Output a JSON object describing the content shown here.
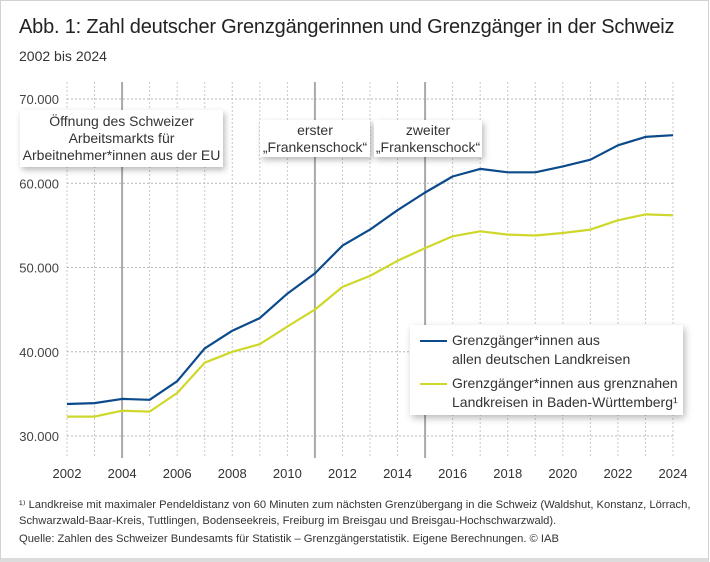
{
  "title": "Abb. 1: Zahl deutscher Grenzgängerinnen und Grenzgänger in der Schweiz",
  "subtitle": "2002 bis 2024",
  "annotations": [
    {
      "year": 2004,
      "lines": [
        "Öffnung des Schweizer",
        "Arbeitsmarkts für",
        "Arbeitnehmer*innen aus der EU"
      ]
    },
    {
      "year": 2011,
      "lines": [
        "erster",
        "„Frankenschock“"
      ]
    },
    {
      "year": 2015,
      "lines": [
        "zweiter",
        "„Frankenschock“"
      ]
    }
  ],
  "legend": [
    {
      "lines": [
        "Grenzgänger*innen aus",
        "allen deutschen Landkreisen"
      ],
      "color": "#0b4a8b"
    },
    {
      "lines": [
        "Grenzgänger*innen aus grenznahen",
        "Landkreisen in Baden-Württemberg¹"
      ],
      "color": "#cfd82a"
    }
  ],
  "footnotes": [
    "¹⁾ Landkreise mit maximaler Pendeldistanz von 60 Minuten zum nächsten Grenzübergang in die Schweiz (Waldshut, Konstanz, Lörrach,",
    "Schwarzwald-Baar-Kreis, Tuttlingen, Bodenseekreis, Freiburg im Breisgau und Breisgau-Hochschwarzwald).",
    "Quelle: Zahlen des Schweizer Bundesamts für Statistik – Grenzgängerstatistik. Eigene Berechnungen. © IAB"
  ],
  "chart_data": {
    "type": "line",
    "title": "Abb. 1: Zahl deutscher Grenzgängerinnen und Grenzgänger in der Schweiz",
    "subtitle": "2002 bis 2024",
    "xlabel": "",
    "ylabel": "",
    "x": [
      2002,
      2003,
      2004,
      2005,
      2006,
      2007,
      2008,
      2009,
      2010,
      2011,
      2012,
      2013,
      2014,
      2015,
      2016,
      2017,
      2018,
      2019,
      2020,
      2021,
      2022,
      2023,
      2024
    ],
    "xlim": [
      2002,
      2024
    ],
    "ylim": [
      27500,
      72000
    ],
    "xticks": [
      2002,
      2004,
      2006,
      2008,
      2010,
      2012,
      2014,
      2016,
      2018,
      2020,
      2022,
      2024
    ],
    "xtick_labels": [
      "2002",
      "2004",
      "2006",
      "2008",
      "2010",
      "2012",
      "2014",
      "2016",
      "2018",
      "2020",
      "2022",
      "2024"
    ],
    "yticks": [
      30000,
      40000,
      50000,
      60000,
      70000
    ],
    "ytick_labels": [
      "30.000",
      "40.000",
      "50.000",
      "60.000",
      "70.000"
    ],
    "grid": true,
    "legend_position": "bottom-right",
    "series": [
      {
        "name": "Grenzgänger*innen aus allen deutschen Landkreisen",
        "color": "#0b4a8b",
        "values": [
          33800,
          33900,
          34400,
          34300,
          36500,
          40400,
          42500,
          44000,
          46900,
          49300,
          52600,
          54500,
          56800,
          58900,
          60800,
          61700,
          61300,
          61300,
          62000,
          62800,
          64500,
          65500,
          65700
        ]
      },
      {
        "name": "Grenzgänger*innen aus grenznahen Landkreisen in Baden-Württemberg¹",
        "color": "#cfd82a",
        "values": [
          32300,
          32300,
          33000,
          32900,
          35100,
          38700,
          40000,
          40900,
          43000,
          45000,
          47700,
          49000,
          50800,
          52300,
          53700,
          54300,
          53900,
          53800,
          54100,
          54500,
          55600,
          56300,
          56200
        ]
      }
    ],
    "vertical_markers": [
      {
        "x": 2004,
        "label": "Öffnung des Schweizer Arbeitsmarkts für Arbeitnehmer*innen aus der EU"
      },
      {
        "x": 2011,
        "label": "erster „Frankenschock“"
      },
      {
        "x": 2015,
        "label": "zweiter „Frankenschock“"
      }
    ]
  }
}
